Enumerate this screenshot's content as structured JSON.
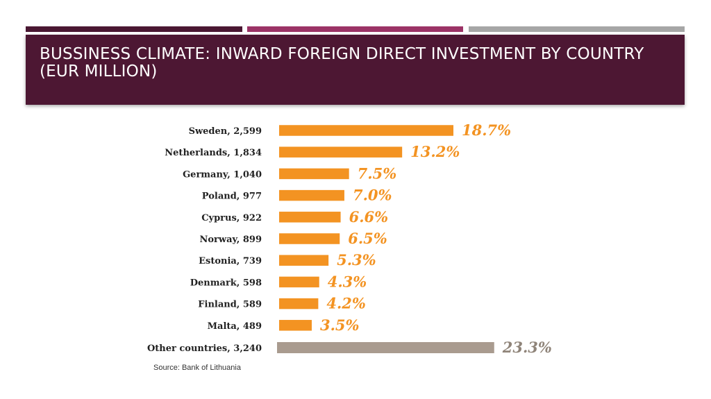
{
  "slide": {
    "title": "BUSSINESS CLIMATE: INWARD FOREIGN DIRECT INVESTMENT BY COUNTRY\n(EUR MILLION)",
    "source": "Source: Bank of Lithuania"
  },
  "colors": {
    "accent_1": "#4a1732",
    "accent_2": "#9b3366",
    "accent_3": "#a6a6a6",
    "title_band": "#4d1733",
    "bar": "#f39322",
    "other_bar": "#a99b8f",
    "other_label": "#8f8479"
  },
  "chart_data": {
    "type": "bar",
    "orientation": "horizontal",
    "categories": [
      "Sweden, 2,599",
      "Netherlands, 1,834",
      "Germany, 1,040",
      "Poland, 977",
      "Cyprus, 922",
      "Norway, 899",
      "Estonia, 739",
      "Denmark, 598",
      "Finland, 589",
      "Malta, 489",
      "Other countries, 3,240"
    ],
    "values": [
      18.7,
      13.2,
      7.5,
      7.0,
      6.6,
      6.5,
      5.3,
      4.3,
      4.2,
      3.5,
      23.3
    ],
    "value_labels": [
      "18.7%",
      "13.2%",
      "7.5%",
      "7.0%",
      "6.6%",
      "6.5%",
      "5.3%",
      "4.3%",
      "4.2%",
      "3.5%",
      "23.3%"
    ],
    "unit": "%",
    "xlim": [
      0,
      23.3
    ],
    "grid": false,
    "legend": "none"
  }
}
